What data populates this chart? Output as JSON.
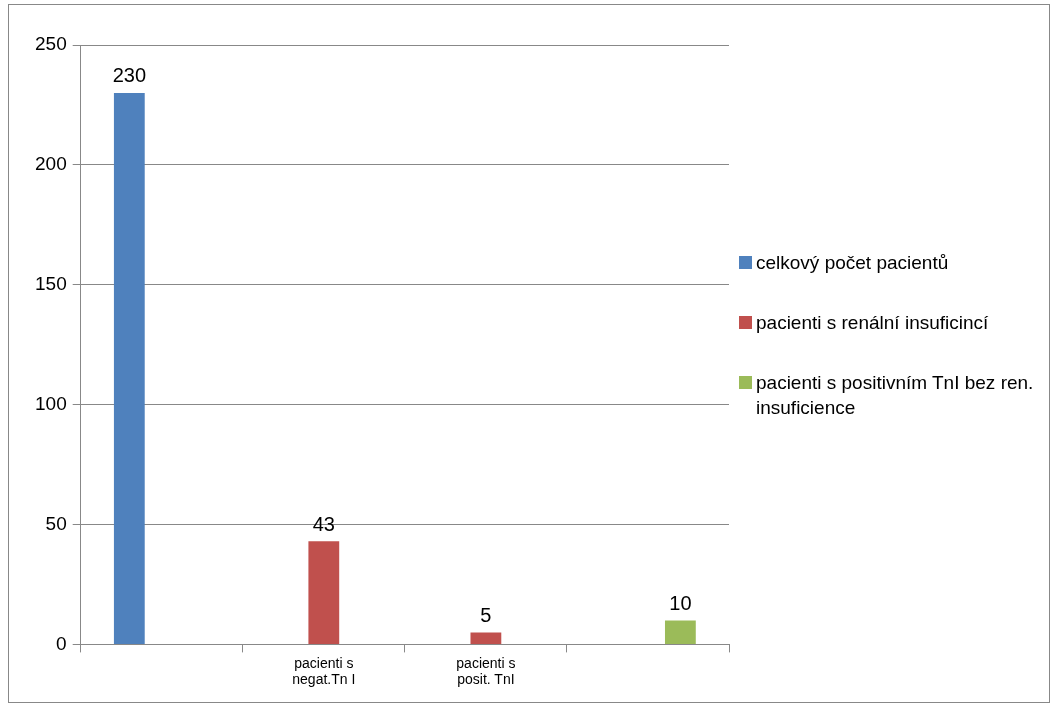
{
  "chart_data": {
    "type": "bar",
    "categories": [
      null,
      "pacienti s negat.Tn I",
      "pacienti s posit. TnI",
      null
    ],
    "series": [
      {
        "name": "celkový počet pacientů",
        "color": "#4f81bd",
        "values": [
          230,
          null,
          null,
          null
        ]
      },
      {
        "name": "pacienti s renální insuficincí",
        "color": "#c0504d",
        "values": [
          null,
          43,
          5,
          null
        ]
      },
      {
        "name": "pacienti s positivním TnI bez ren. insuficience",
        "color": "#9bbb59",
        "values": [
          null,
          null,
          null,
          10
        ]
      }
    ],
    "ylim": [
      0,
      250
    ],
    "yticks": [
      0,
      50,
      100,
      150,
      200,
      250
    ],
    "grid": "y",
    "legend": "right",
    "data_labels": true
  }
}
